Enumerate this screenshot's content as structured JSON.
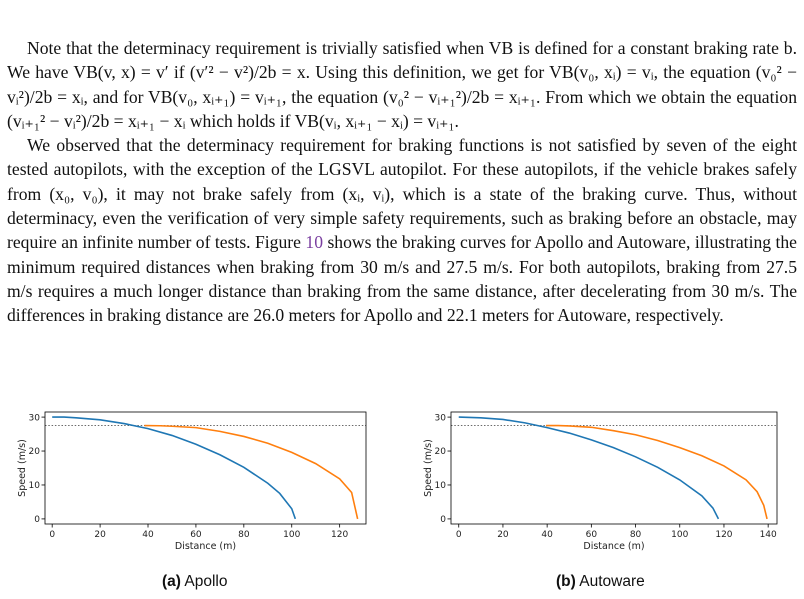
{
  "paragraph1": "Note that the determinacy requirement is trivially satisfied when VB is defined for a constant braking rate b. We have VB(v, x) = v′ if (v′² − v²)/2b = x. Using this definition, we get for VB(v₀, xᵢ) = vᵢ, the equation (v₀² − vᵢ²)/2b = xᵢ, and for VB(v₀, xᵢ₊₁) = vᵢ₊₁, the equation (v₀² − vᵢ₊₁²)/2b = xᵢ₊₁. From which we obtain the equation (vᵢ₊₁² − vᵢ²)/2b = xᵢ₊₁ − xᵢ which holds if VB(vᵢ, xᵢ₊₁ − xᵢ) = vᵢ₊₁.",
  "paragraph2": {
    "before_ref": "We observed that the determinacy requirement for braking functions is not satisfied by seven of the eight tested autopilots, with the exception of the LGSVL autopilot. For these autopilots, if the vehicle brakes safely from (x₀, v₀), it may not brake safely from (xᵢ, vᵢ), which is a state of the braking curve. Thus, without determinacy, even the verification of very simple safety requirements, such as braking before an obstacle, may require an infinite number of tests. Figure ",
    "ref": "10",
    "after_ref": " shows the braking curves for Apollo and Autoware, illustrating the minimum required distances when braking from 30 m/s and 27.5 m/s. For both autopilots, braking from 27.5 m/s requires a much longer distance than braking from the same distance, after decelerating from 30 m/s. The differences in braking distance are 26.0 meters for Apollo and 22.1 meters for Autoware, respectively."
  },
  "colors": {
    "series_30": "#1f77b4",
    "series_27_5": "#ff7f0e",
    "ref_link": "#7a3fa0"
  },
  "chart_data": [
    {
      "type": "line",
      "xlabel": "Distance (m)",
      "ylabel": "Speed (m/s)",
      "xlim": [
        -3,
        131
      ],
      "ylim": [
        -1.5,
        31.5
      ],
      "xticks": [
        0,
        20,
        40,
        60,
        80,
        100,
        120
      ],
      "yticks": [
        0,
        10,
        20,
        30
      ],
      "grid": false,
      "reference_line": {
        "y": 27.5,
        "style": "dotted"
      },
      "series": [
        {
          "color": "#1f77b4",
          "x": [
            0,
            5,
            10,
            20,
            30,
            40,
            50,
            60,
            70,
            80,
            90,
            95,
            100,
            101.5
          ],
          "y": [
            30,
            30,
            29.8,
            29.2,
            28.1,
            26.6,
            24.6,
            22.0,
            18.9,
            15.2,
            10.5,
            7.5,
            3.0,
            0
          ]
        },
        {
          "color": "#ff7f0e",
          "x": [
            38.5,
            45,
            50,
            60,
            70,
            80,
            90,
            100,
            110,
            120,
            125,
            127.5
          ],
          "y": [
            27.5,
            27.45,
            27.3,
            26.9,
            25.8,
            24.3,
            22.3,
            19.6,
            16.3,
            11.8,
            7.8,
            0
          ]
        }
      ]
    },
    {
      "type": "line",
      "xlabel": "Distance (m)",
      "ylabel": "Speed (m/s)",
      "xlim": [
        -3.5,
        144
      ],
      "ylim": [
        -1.5,
        31.5
      ],
      "xticks": [
        0,
        20,
        40,
        60,
        80,
        100,
        120,
        140
      ],
      "yticks": [
        0,
        10,
        20,
        30
      ],
      "grid": false,
      "reference_line": {
        "y": 27.5,
        "style": "dotted"
      },
      "series": [
        {
          "color": "#1f77b4",
          "x": [
            0,
            10,
            20,
            30,
            40,
            50,
            60,
            70,
            80,
            90,
            100,
            110,
            115,
            117.5
          ],
          "y": [
            30,
            29.8,
            29.3,
            28.3,
            26.9,
            25.3,
            23.3,
            21.0,
            18.3,
            15.2,
            11.5,
            6.8,
            3.2,
            0
          ]
        },
        {
          "color": "#ff7f0e",
          "x": [
            39.5,
            45,
            50,
            60,
            70,
            80,
            90,
            100,
            110,
            120,
            130,
            135,
            138,
            139.5
          ],
          "y": [
            27.5,
            27.5,
            27.4,
            27.0,
            26.0,
            24.8,
            23.1,
            21.0,
            18.6,
            15.6,
            11.5,
            8.0,
            4.0,
            0
          ]
        }
      ]
    }
  ],
  "captions": [
    {
      "label": "(a)",
      "text": "Apollo"
    },
    {
      "label": "(b)",
      "text": "Autoware"
    }
  ]
}
